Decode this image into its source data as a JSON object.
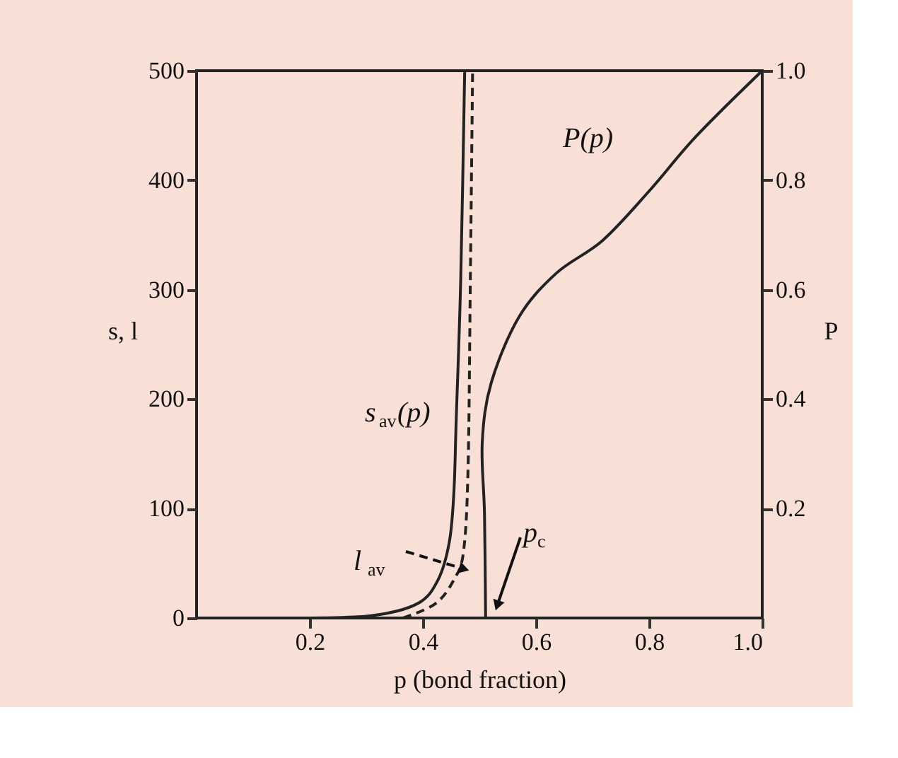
{
  "chart_data": {
    "type": "line",
    "xlabel": "p (bond fraction)",
    "ylabel": "s, l",
    "y2label": "P",
    "xlim": [
      0,
      1
    ],
    "xticks": [
      0.2,
      0.4,
      0.6,
      0.8,
      {
        "value": 1,
        "label": "1.0"
      }
    ],
    "ylim": [
      0,
      500
    ],
    "yticks": [
      0,
      100,
      200,
      300,
      400,
      500
    ],
    "y2lim": [
      0,
      1
    ],
    "y2ticks": [
      0.2,
      0.4,
      0.6,
      0.8,
      {
        "value": 1,
        "label": "1.0"
      }
    ],
    "grid": false,
    "marker": "none",
    "series": [
      {
        "color": "#222222",
        "line_style": "solid",
        "x": [
          0.168,
          0.306,
          0.39,
          0.427,
          0.447,
          0.455,
          0.459,
          0.467,
          0.474
        ],
        "values": [
          0,
          2,
          13,
          35,
          70,
          116,
          181,
          310,
          500
        ]
      },
      {
        "color": "#222222",
        "line_style": "dashed",
        "x": [
          0.365,
          0.422,
          0.455,
          0.472,
          0.48,
          0.484,
          0.488
        ],
        "values": [
          0,
          13,
          35,
          61,
          138,
          310,
          500
        ]
      },
      {
        "color": "#222222",
        "line_style": "solid",
        "axis": "y2",
        "x": [
          0.511,
          0.509,
          0.505,
          0.521,
          0.57,
          0.636,
          0.718,
          0.8,
          0.883,
          1.0
        ],
        "values": [
          0,
          0.19,
          0.32,
          0.43,
          0.55,
          0.63,
          0.69,
          0.78,
          0.88,
          1.0
        ]
      }
    ],
    "annotations": [
      "P(p)",
      "s$_{av}$(p)",
      "l$_{av}$",
      "p$_{c}$"
    ]
  }
}
